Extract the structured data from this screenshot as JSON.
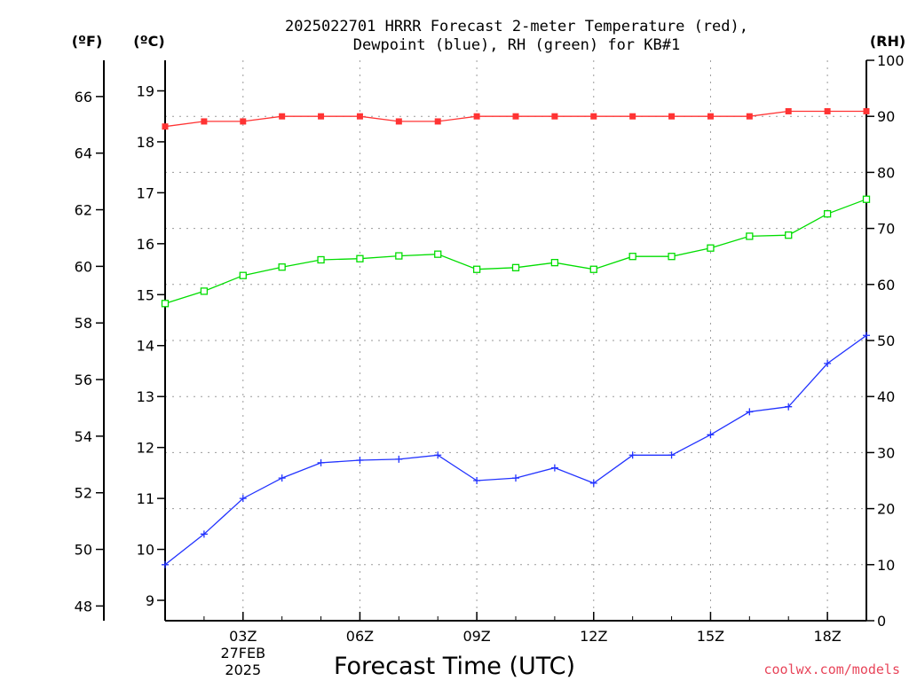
{
  "chart_data": {
    "type": "line",
    "title": "2025022701 HRRR Forecast 2-meter Temperature (red),",
    "subtitle": "Dewpoint (blue), RH (green) for KB#1",
    "xlabel": "Forecast Time (UTC)",
    "credit": "coolwx.com/models",
    "units": {
      "fahrenheit": "(ºF)",
      "celsius": "(ºC)",
      "rh": "(RH)"
    },
    "x_hours": [
      1,
      2,
      3,
      4,
      5,
      6,
      7,
      8,
      9,
      10,
      11,
      12,
      13,
      14,
      15,
      16,
      17,
      18,
      19
    ],
    "xlim": [
      1,
      19
    ],
    "x_ticks": [
      {
        "hour": 3,
        "lines": [
          "03Z",
          "27FEB",
          "2025"
        ]
      },
      {
        "hour": 6,
        "lines": [
          "06Z"
        ]
      },
      {
        "hour": 9,
        "lines": [
          "09Z"
        ]
      },
      {
        "hour": 12,
        "lines": [
          "12Z"
        ]
      },
      {
        "hour": 15,
        "lines": [
          "15Z"
        ]
      },
      {
        "hour": 18,
        "lines": [
          "18Z"
        ]
      }
    ],
    "celsius_axis": {
      "ylim": [
        8.6,
        19.6
      ],
      "ticks": [
        9,
        10,
        11,
        12,
        13,
        14,
        15,
        16,
        17,
        18,
        19
      ]
    },
    "fahrenheit_axis": {
      "ticks": [
        48,
        50,
        52,
        54,
        56,
        58,
        60,
        62,
        64,
        66
      ]
    },
    "rh_axis": {
      "ylim": [
        0,
        100
      ],
      "ticks": [
        0,
        10,
        20,
        30,
        40,
        50,
        60,
        70,
        80,
        90,
        100
      ]
    },
    "grid": true,
    "series": [
      {
        "color": "#ff3333",
        "marker": "filled-square",
        "axis": "celsius",
        "values": [
          18.3,
          18.4,
          18.4,
          18.5,
          18.5,
          18.5,
          18.4,
          18.4,
          18.5,
          18.5,
          18.5,
          18.5,
          18.5,
          18.5,
          18.5,
          18.5,
          18.6,
          18.6,
          18.6
        ]
      },
      {
        "color": "#2233ff",
        "marker": "plus",
        "axis": "celsius",
        "values": [
          9.7,
          10.3,
          11.0,
          11.4,
          11.7,
          11.75,
          11.77,
          11.85,
          11.35,
          11.4,
          11.6,
          11.3,
          11.85,
          11.85,
          12.25,
          12.7,
          12.8,
          13.65,
          14.2
        ]
      },
      {
        "color": "#00dd00",
        "marker": "open-square",
        "axis": "rh",
        "values": [
          56.6,
          58.8,
          61.6,
          63.1,
          64.4,
          64.6,
          65.1,
          65.4,
          62.7,
          63.0,
          63.9,
          62.7,
          65.0,
          65.0,
          66.5,
          68.6,
          68.8,
          72.6,
          75.2
        ]
      }
    ]
  }
}
